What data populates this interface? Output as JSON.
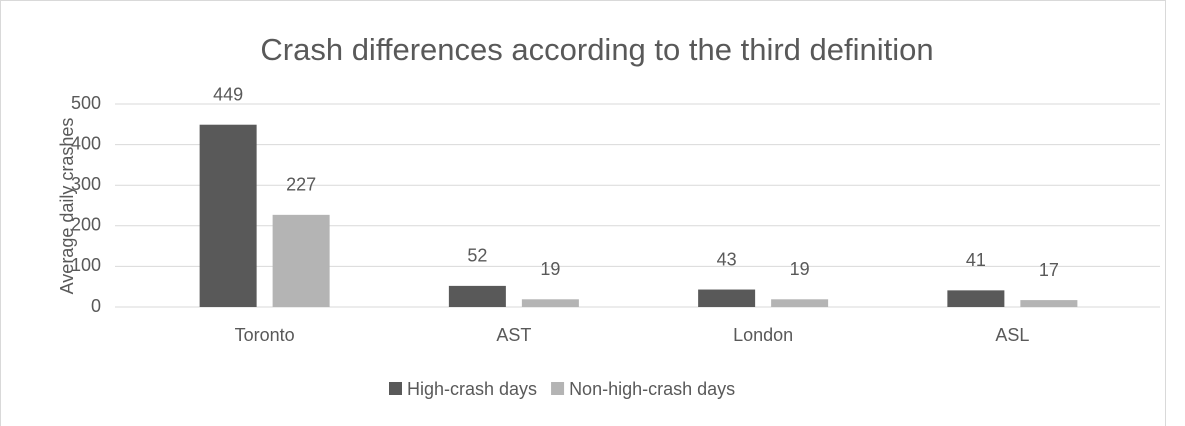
{
  "chart_data": {
    "type": "bar",
    "title": "Crash differences according to the third definition",
    "y_label": "Average daily crashes",
    "categories": [
      "Toronto",
      "AST",
      "London",
      "ASL"
    ],
    "series": [
      {
        "name": "High-crash days",
        "color": "#595959",
        "values": [
          449,
          52,
          43,
          41
        ]
      },
      {
        "name": "Non-high-crash days",
        "color": "#b4b4b4",
        "values": [
          227,
          19,
          19,
          17
        ]
      }
    ],
    "ylim": [
      0,
      500
    ],
    "yticks": [
      0,
      100,
      200,
      300,
      400,
      500
    ],
    "grid": true,
    "legend": "bottom"
  }
}
